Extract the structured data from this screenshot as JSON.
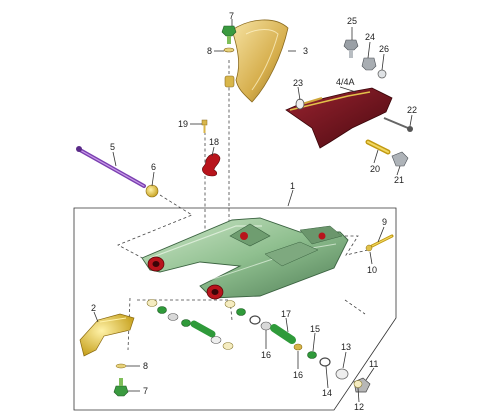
{
  "diagram": {
    "kind": "exploded parts diagram (swing arm assembly)",
    "callouts": [
      "1",
      "2",
      "3",
      "4/4A",
      "5",
      "6",
      "7",
      "7",
      "8",
      "8",
      "9",
      "10",
      "11",
      "12",
      "13",
      "14",
      "15",
      "16",
      "16",
      "17",
      "18",
      "19",
      "20",
      "21",
      "22",
      "23",
      "24",
      "25",
      "26"
    ],
    "colors": {
      "swingarm": "#8fbf8f",
      "swingarm_dark": "#4f7d55",
      "red_bushing": "#b8141c",
      "yellow_part": "#d9b21e",
      "gold_fender": "#c9a545",
      "purple_axle": "#7a3fb0",
      "green_spacer": "#2f9a3a",
      "chain_guard": "#5e0d14",
      "line": "#333333"
    }
  }
}
